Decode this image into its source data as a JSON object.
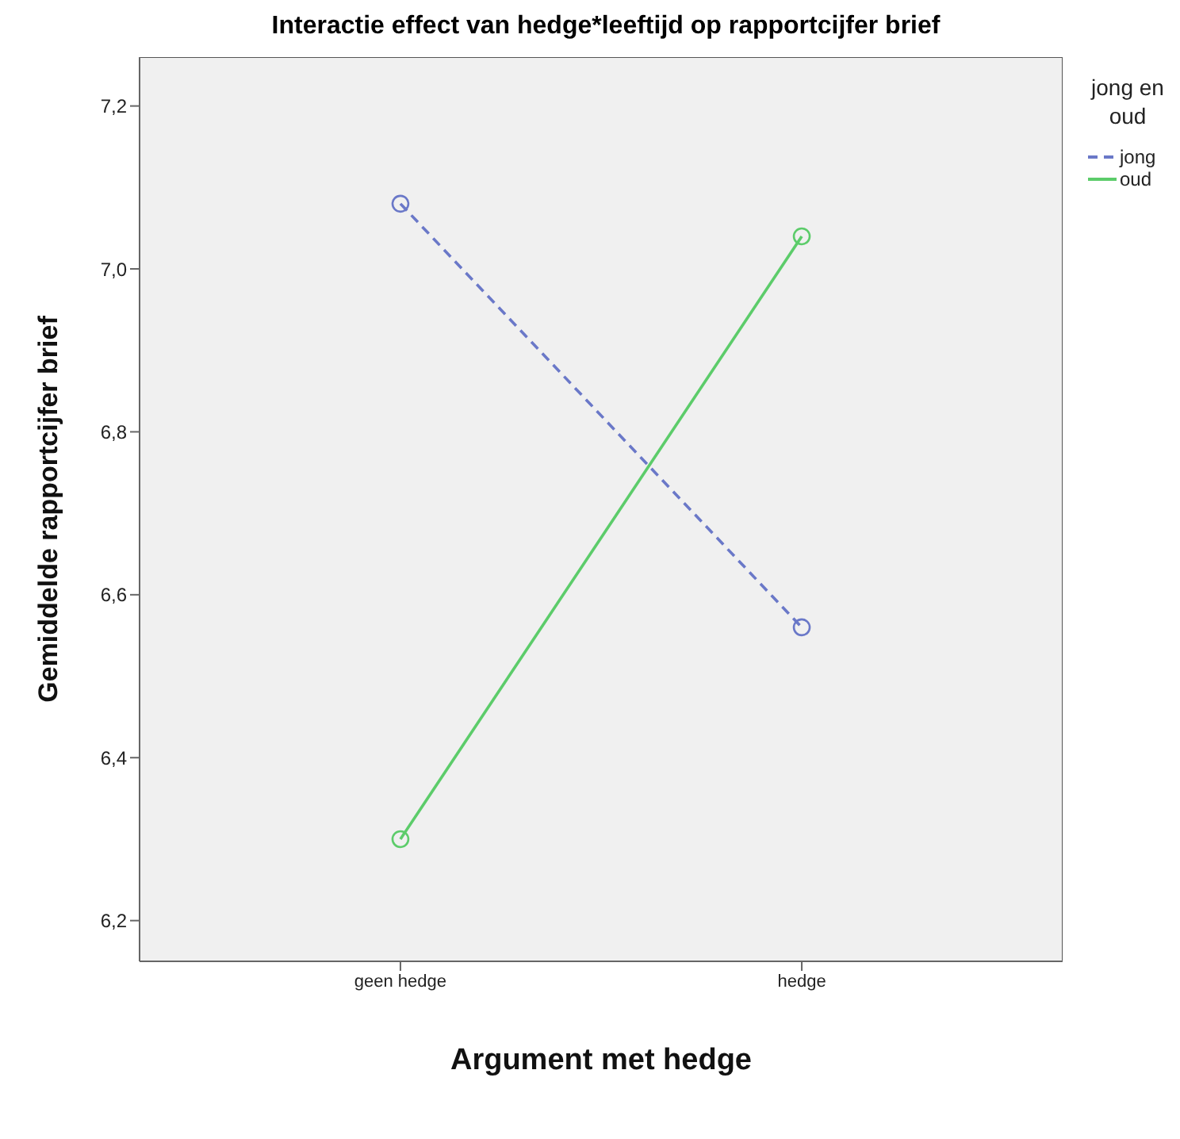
{
  "chart_data": {
    "type": "line",
    "title": "Interactie effect van hedge*leeftijd op rapportcijfer brief",
    "xlabel": "Argument met hedge",
    "ylabel": "Gemiddelde rapportcijfer brief",
    "legend_title": "jong en oud",
    "categories": [
      "geen hedge",
      "hedge"
    ],
    "series": [
      {
        "name": "jong",
        "color": "#6a78c8",
        "values": [
          7.08,
          6.56
        ],
        "line_style": "dashed"
      },
      {
        "name": "oud",
        "color": "#5ccc6a",
        "values": [
          6.3,
          7.04
        ],
        "line_style": "solid"
      }
    ],
    "ylim": [
      6.15,
      7.26
    ],
    "yticks": [
      {
        "value": 6.2,
        "label": "6,2"
      },
      {
        "value": 6.4,
        "label": "6,4"
      },
      {
        "value": 6.6,
        "label": "6,6"
      },
      {
        "value": 6.8,
        "label": "6,8"
      },
      {
        "value": 7.0,
        "label": "7,0"
      },
      {
        "value": 7.2,
        "label": "7,2"
      }
    ],
    "grid": false,
    "legend": "top right",
    "marker": "circle"
  }
}
